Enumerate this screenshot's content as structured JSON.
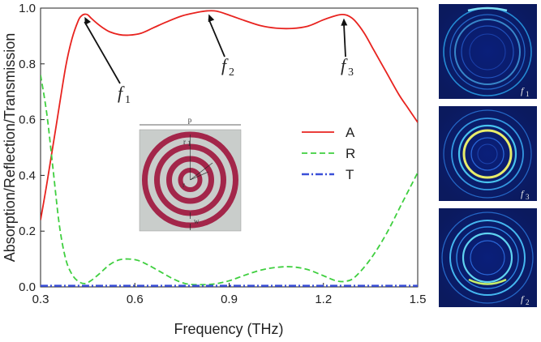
{
  "chart_data": {
    "type": "line",
    "xlabel": "Frequency (THz)",
    "ylabel": "Absorption/Reflection/Transmission",
    "xlim": [
      0.3,
      1.5
    ],
    "ylim": [
      0.0,
      1.0
    ],
    "xticks": [
      0.3,
      0.6,
      0.9,
      1.2,
      1.5
    ],
    "xtick_labels": [
      "0.3",
      "0.6",
      "0.9",
      "1.2",
      "1.5"
    ],
    "yticks": [
      0.0,
      0.2,
      0.4,
      0.6,
      0.8,
      1.0
    ],
    "ytick_labels": [
      "0.0",
      "0.2",
      "0.4",
      "0.6",
      "0.8",
      "1.0"
    ],
    "grid": false,
    "legend_position": "right, mid-height",
    "series": [
      {
        "name": "A",
        "color": "#e8231f",
        "dash": "solid",
        "x": [
          0.3,
          0.32,
          0.35,
          0.38,
          0.4,
          0.42,
          0.43,
          0.44,
          0.45,
          0.46,
          0.48,
          0.5,
          0.52,
          0.55,
          0.58,
          0.62,
          0.66,
          0.7,
          0.75,
          0.8,
          0.83,
          0.86,
          0.9,
          0.95,
          1.0,
          1.05,
          1.1,
          1.15,
          1.2,
          1.24,
          1.26,
          1.28,
          1.3,
          1.33,
          1.36,
          1.4,
          1.44,
          1.47,
          1.5
        ],
        "y": [
          0.24,
          0.37,
          0.58,
          0.79,
          0.89,
          0.955,
          0.972,
          0.978,
          0.976,
          0.965,
          0.945,
          0.928,
          0.915,
          0.905,
          0.903,
          0.91,
          0.93,
          0.95,
          0.972,
          0.985,
          0.99,
          0.989,
          0.975,
          0.955,
          0.937,
          0.928,
          0.927,
          0.935,
          0.958,
          0.973,
          0.977,
          0.972,
          0.955,
          0.91,
          0.85,
          0.77,
          0.69,
          0.64,
          0.59
        ]
      },
      {
        "name": "R",
        "color": "#3fcf3f",
        "dash": "dashed",
        "x": [
          0.3,
          0.32,
          0.34,
          0.36,
          0.38,
          0.4,
          0.42,
          0.44,
          0.46,
          0.49,
          0.52,
          0.55,
          0.58,
          0.61,
          0.64,
          0.68,
          0.72,
          0.76,
          0.8,
          0.85,
          0.9,
          0.95,
          1.0,
          1.05,
          1.1,
          1.15,
          1.2,
          1.24,
          1.27,
          1.3,
          1.35,
          1.4,
          1.45,
          1.5
        ],
        "y": [
          0.76,
          0.62,
          0.42,
          0.22,
          0.1,
          0.045,
          0.02,
          0.012,
          0.022,
          0.05,
          0.08,
          0.097,
          0.1,
          0.095,
          0.08,
          0.055,
          0.03,
          0.012,
          0.008,
          0.01,
          0.022,
          0.042,
          0.06,
          0.07,
          0.072,
          0.062,
          0.04,
          0.022,
          0.02,
          0.035,
          0.1,
          0.19,
          0.3,
          0.41
        ]
      },
      {
        "name": "T",
        "color": "#3a4fd8",
        "dash": "dashdot",
        "x": [
          0.3,
          0.6,
          0.9,
          1.2,
          1.5
        ],
        "y": [
          0.004,
          0.004,
          0.004,
          0.004,
          0.004
        ]
      }
    ],
    "annotations": [
      {
        "label": "f",
        "sub": "1",
        "x": 0.44,
        "y": 0.98
      },
      {
        "label": "f",
        "sub": "2",
        "x": 0.835,
        "y": 0.99
      },
      {
        "label": "f",
        "sub": "3",
        "x": 1.265,
        "y": 0.975
      }
    ],
    "inset_labels": [
      "p",
      "r",
      "1",
      "w"
    ],
    "panel_labels": [
      {
        "label": "f",
        "sub": "1"
      },
      {
        "label": "f",
        "sub": "3"
      },
      {
        "label": "f",
        "sub": "2"
      }
    ]
  }
}
